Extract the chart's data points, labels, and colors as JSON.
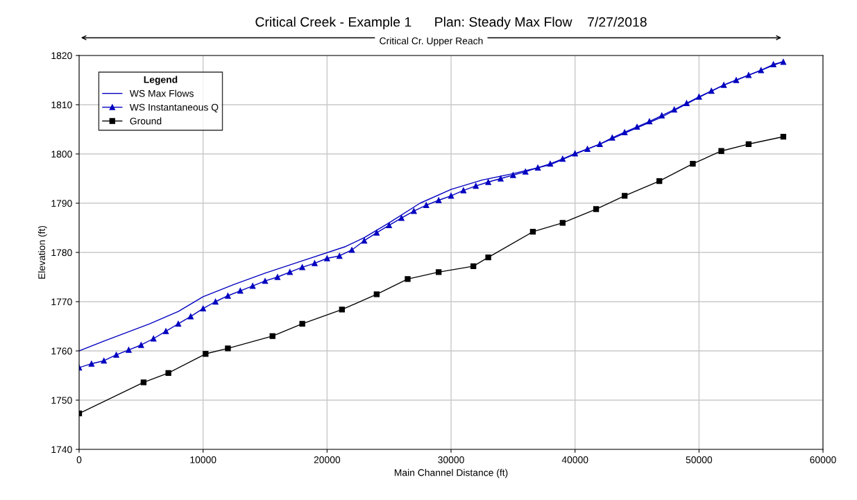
{
  "chart_data": {
    "type": "line",
    "title": "Critical Creek - Example 1      Plan: Steady Max Flow    7/27/2018",
    "xlabel": "Main Channel Distance (ft)",
    "ylabel": "Elevation (ft)",
    "legend_title": "Legend",
    "annotations": [
      "Critical Cr. Upper Reach"
    ],
    "xlim": [
      0,
      60000
    ],
    "xticks": [
      0,
      10000,
      20000,
      30000,
      40000,
      50000,
      60000
    ],
    "ylim": [
      1740,
      1820
    ],
    "yticks": [
      1740,
      1750,
      1760,
      1770,
      1780,
      1790,
      1800,
      1810,
      1820
    ],
    "grid": true,
    "legend": "top left",
    "series": [
      {
        "name": "WS Max Flows",
        "color": "#0000c0",
        "marker": "none",
        "x": [
          0,
          2000,
          5700,
          8000,
          10000,
          12500,
          15000,
          18000,
          21500,
          23000,
          25000,
          27500,
          30000,
          32500,
          35000,
          38000,
          40000,
          42000,
          44000,
          47000,
          50000,
          52000,
          54000,
          56800
        ],
        "values": [
          1760,
          1762,
          1765.5,
          1768,
          1771,
          1773.5,
          1775.8,
          1778.3,
          1781.2,
          1783,
          1786,
          1790,
          1792.8,
          1794.7,
          1796,
          1797.8,
          1800,
          1802,
          1804.2,
          1807.5,
          1811.5,
          1814,
          1816,
          1818.8
        ]
      },
      {
        "name": "WS Instantaneous Q",
        "color": "#0000c0",
        "marker": "triangle",
        "x": [
          0,
          1000,
          2000,
          3000,
          4000,
          5000,
          6000,
          7000,
          8000,
          9000,
          10000,
          11000,
          12000,
          13000,
          14000,
          15000,
          16000,
          17000,
          18000,
          19000,
          20000,
          21000,
          22000,
          23000,
          24000,
          25000,
          26000,
          27000,
          28000,
          29000,
          30000,
          31000,
          32000,
          33000,
          34000,
          35000,
          36000,
          37000,
          38000,
          39000,
          40000,
          41000,
          42000,
          43000,
          44000,
          45000,
          46000,
          47000,
          48000,
          49000,
          50000,
          51000,
          52000,
          53000,
          54000,
          55000,
          56000,
          56800
        ],
        "values": [
          1756.6,
          1757.4,
          1758,
          1759.2,
          1760.2,
          1761.2,
          1762.5,
          1764,
          1765.5,
          1767,
          1768.6,
          1770,
          1771.2,
          1772.2,
          1773.2,
          1774.2,
          1775,
          1776,
          1777,
          1777.8,
          1778.8,
          1779.3,
          1780.5,
          1782.4,
          1784,
          1785.5,
          1787,
          1788.4,
          1789.6,
          1790.6,
          1791.5,
          1792.6,
          1793.5,
          1794.3,
          1795,
          1795.7,
          1796.4,
          1797.2,
          1798,
          1799,
          1800.1,
          1801,
          1802,
          1803.3,
          1804.4,
          1805.5,
          1806.6,
          1807.8,
          1809,
          1810.3,
          1811.6,
          1812.8,
          1814,
          1815,
          1816,
          1817,
          1818.2,
          1818.7
        ]
      },
      {
        "name": "Ground",
        "color": "#000000",
        "marker": "square",
        "x": [
          0,
          5200,
          7200,
          10200,
          12000,
          15600,
          18000,
          21200,
          24000,
          26500,
          29000,
          31800,
          33000,
          36600,
          39000,
          41700,
          44000,
          46800,
          49500,
          51800,
          54000,
          56800
        ],
        "values": [
          1747.3,
          1753.6,
          1755.5,
          1759.4,
          1760.5,
          1763,
          1765.5,
          1768.4,
          1771.5,
          1774.6,
          1776,
          1777.2,
          1779,
          1784.2,
          1786,
          1788.8,
          1791.5,
          1794.5,
          1798,
          1800.6,
          1802,
          1803.5
        ]
      }
    ]
  }
}
